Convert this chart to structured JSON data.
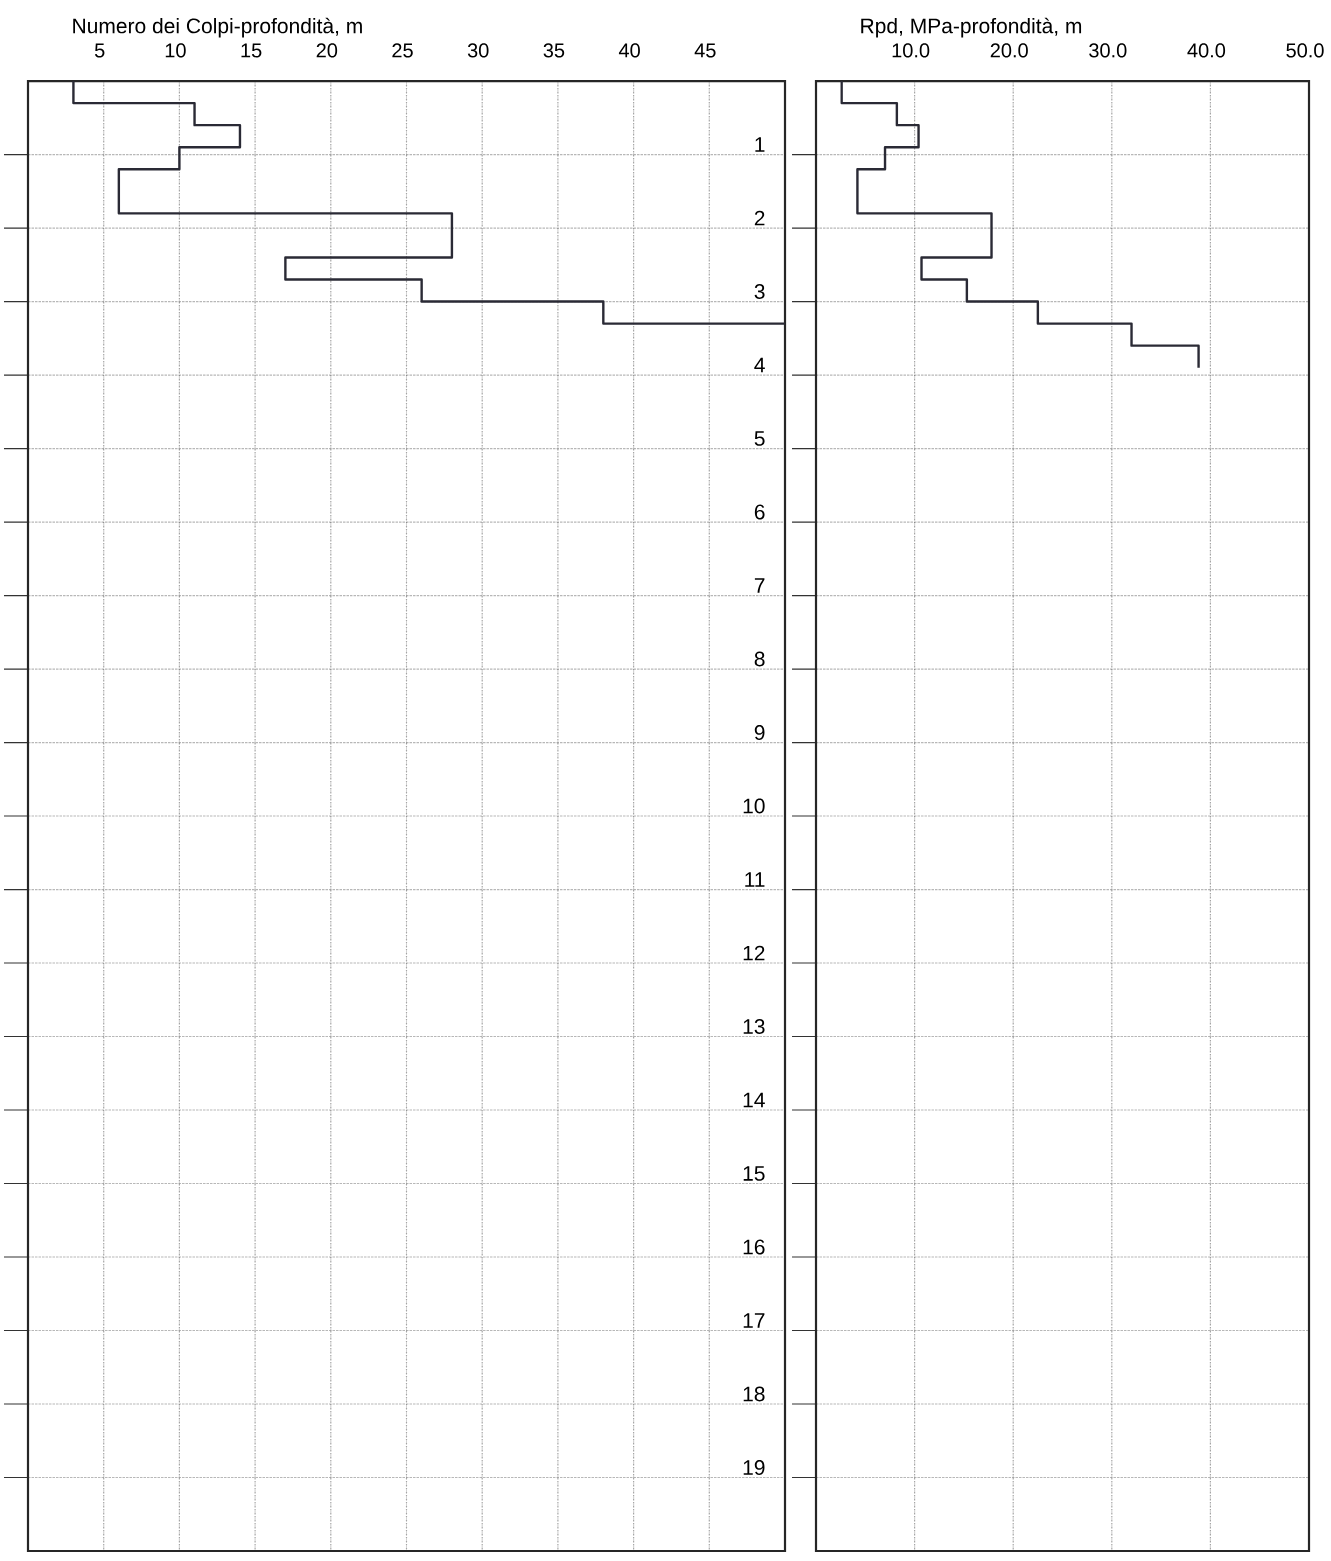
{
  "chart_data": [
    {
      "type": "line",
      "title": "Numero dei Colpi-profondità, m",
      "color": "#2a2a35",
      "x": [
        3,
        3,
        11,
        11,
        14,
        14,
        10,
        10,
        6,
        6,
        28,
        28,
        17,
        17,
        26,
        26,
        38,
        38,
        50
      ],
      "values": [
        0,
        0.3,
        0.3,
        0.6,
        0.6,
        0.9,
        0.9,
        1.2,
        1.2,
        1.8,
        1.8,
        2.4,
        2.4,
        2.7,
        2.7,
        3.0,
        3.0,
        3.3,
        3.3
      ],
      "xlim": [
        0,
        50
      ],
      "ylim": [
        20,
        0
      ],
      "xticks": [
        5,
        10,
        15,
        20,
        25,
        30,
        35,
        40,
        45
      ],
      "yticks": [
        1,
        2,
        3,
        4,
        5,
        6,
        7,
        8,
        9,
        10,
        11,
        12,
        13,
        14,
        15,
        16,
        17,
        18,
        19
      ],
      "grid": true
    },
    {
      "type": "line",
      "title": "Rpd, MPa-profondità, m",
      "color": "#2a2a35",
      "x": [
        2.6,
        2.6,
        8.2,
        8.2,
        10.4,
        10.4,
        7.0,
        7.0,
        4.2,
        4.2,
        17.8,
        17.8,
        10.7,
        10.7,
        15.3,
        15.3,
        22.5,
        22.5,
        32.0,
        32.0,
        38.8,
        38.8
      ],
      "values": [
        0,
        0.3,
        0.3,
        0.6,
        0.6,
        0.9,
        0.9,
        1.2,
        1.2,
        1.8,
        1.8,
        2.4,
        2.4,
        2.7,
        2.7,
        3.0,
        3.0,
        3.3,
        3.3,
        3.6,
        3.6,
        3.9
      ],
      "xlim": [
        0,
        50
      ],
      "ylim": [
        20,
        0
      ],
      "xticks": [
        {
          "value": 10,
          "label": "10.0"
        },
        {
          "value": 20,
          "label": "20.0"
        },
        {
          "value": 30,
          "label": "30.0"
        },
        {
          "value": 40,
          "label": "40.0"
        },
        {
          "value": 50,
          "label": "50.0"
        }
      ],
      "yticks": [
        1,
        2,
        3,
        4,
        5,
        6,
        7,
        8,
        9,
        10,
        11,
        12,
        13,
        14,
        15,
        16,
        17,
        18,
        19
      ],
      "grid": true,
      "tick_labels": "x"
    }
  ]
}
